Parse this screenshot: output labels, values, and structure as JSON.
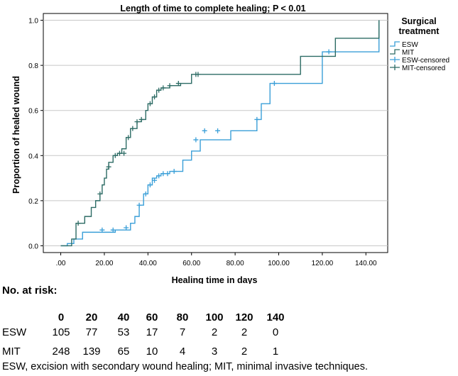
{
  "chart_data": {
    "type": "line",
    "subtype": "kaplan-meier step",
    "title": "Length of time to complete healing; P < 0.01",
    "xlabel": "Healing time in days",
    "ylabel": "Proportion of healed wound",
    "xlim": [
      -8,
      150
    ],
    "ylim": [
      -0.03,
      1.03
    ],
    "x_ticks": [
      ".00",
      "20.00",
      "40.00",
      "60.00",
      "80.00",
      "100.00",
      "120.00",
      "140.00"
    ],
    "x_tick_values": [
      0,
      20,
      40,
      60,
      80,
      100,
      120,
      140
    ],
    "y_ticks": [
      "0.0",
      "0.2",
      "0.4",
      "0.6",
      "0.8",
      "1.0"
    ],
    "y_tick_values": [
      0,
      0.2,
      0.4,
      0.6,
      0.8,
      1.0
    ],
    "grid": "horizontal",
    "legend": {
      "title": "Surgical treatment",
      "placement": "right",
      "entries": [
        "ESW",
        "MIT",
        "ESW-censored",
        "MIT-censored"
      ]
    },
    "colors": {
      "ESW": "#3a9fd8",
      "MIT": "#2c6b64"
    },
    "series": [
      {
        "name": "ESW",
        "x": [
          0,
          3,
          6,
          10,
          25,
          32,
          34,
          36,
          38,
          40,
          42,
          44,
          46,
          50,
          56,
          60,
          64,
          78,
          90,
          92,
          96,
          120,
          122,
          146
        ],
        "y": [
          0,
          0.01,
          0.03,
          0.06,
          0.07,
          0.1,
          0.13,
          0.18,
          0.23,
          0.27,
          0.3,
          0.31,
          0.32,
          0.33,
          0.38,
          0.42,
          0.47,
          0.51,
          0.56,
          0.63,
          0.72,
          0.86,
          0.86,
          1.0
        ]
      },
      {
        "name": "MIT",
        "x": [
          0,
          5,
          7,
          11,
          14,
          16,
          18,
          19,
          20,
          21,
          22,
          24,
          26,
          28,
          30,
          32,
          35,
          37,
          39,
          40,
          42,
          44,
          46,
          50,
          55,
          60,
          110,
          126,
          146
        ],
        "y": [
          0,
          0.03,
          0.1,
          0.13,
          0.17,
          0.2,
          0.23,
          0.27,
          0.3,
          0.34,
          0.37,
          0.4,
          0.41,
          0.43,
          0.48,
          0.52,
          0.55,
          0.56,
          0.6,
          0.63,
          0.66,
          0.69,
          0.7,
          0.71,
          0.72,
          0.76,
          0.84,
          0.92,
          1.0
        ]
      }
    ],
    "censored": [
      {
        "name": "ESW-censored",
        "x": [
          19,
          24,
          30,
          36,
          39,
          41,
          43,
          45,
          47,
          49,
          52,
          62,
          66,
          72,
          90,
          98,
          123
        ],
        "y": [
          0.07,
          0.07,
          0.08,
          0.18,
          0.23,
          0.27,
          0.29,
          0.31,
          0.32,
          0.32,
          0.33,
          0.47,
          0.51,
          0.51,
          0.56,
          0.72,
          0.86
        ]
      },
      {
        "name": "MIT-censored",
        "x": [
          8,
          18,
          22,
          25,
          27,
          29,
          31,
          33,
          35,
          37,
          41,
          43,
          45,
          47,
          50,
          54,
          62,
          63
        ],
        "y": [
          0.1,
          0.23,
          0.35,
          0.4,
          0.41,
          0.41,
          0.48,
          0.52,
          0.55,
          0.56,
          0.63,
          0.66,
          0.69,
          0.7,
          0.71,
          0.72,
          0.76,
          0.76
        ]
      }
    ]
  },
  "risk_table": {
    "title": "No. at risk:",
    "times": [
      "0",
      "20",
      "40",
      "60",
      "80",
      "100",
      "120",
      "140"
    ],
    "rows": [
      {
        "label": "ESW",
        "values": [
          "105",
          "77",
          "53",
          "17",
          "7",
          "2",
          "2",
          "0"
        ]
      },
      {
        "label": "MIT",
        "values": [
          "248",
          "139",
          "65",
          "10",
          "4",
          "3",
          "2",
          "1"
        ]
      }
    ],
    "footnote": "ESW, excision with secondary wound healing; MIT, minimal invasive techniques."
  }
}
